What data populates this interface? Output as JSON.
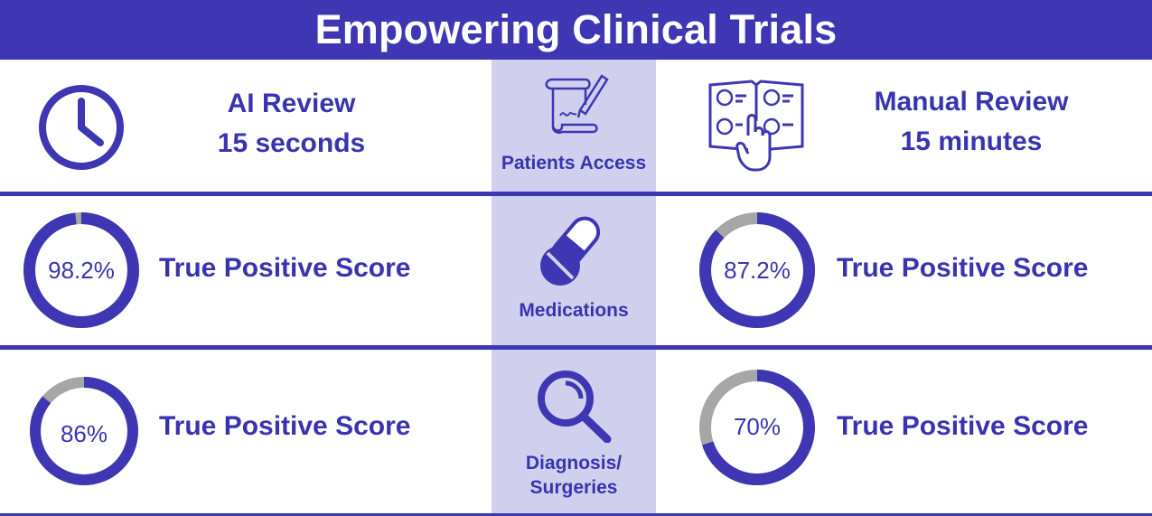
{
  "title": "Empowering Clinical Trials",
  "colors": {
    "primary": "#3e36b3",
    "ring_track": "#a6a6a6",
    "center_band": "#d0d0ee",
    "text": "#3a33b0"
  },
  "ai_review": {
    "label": "AI Review",
    "time": "15 seconds",
    "icon": "clock-icon"
  },
  "manual_review": {
    "label": "Manual Review",
    "time": "15 minutes",
    "icon": "checklist-book-icon"
  },
  "categories": [
    {
      "label": "Patients Access",
      "icon": "scroll-quill-icon"
    },
    {
      "label": "Medications",
      "icon": "pills-icon"
    },
    {
      "label": "Diagnosis/",
      "label2": "Surgeries",
      "icon": "magnifier-icon"
    }
  ],
  "metrics": {
    "ai_medications": {
      "value_text": "98.2%",
      "fraction": 0.982,
      "label": "True Positive Score"
    },
    "manual_medications": {
      "value_text": "87.2%",
      "fraction": 0.872,
      "label": "True Positive Score"
    },
    "ai_diagnosis": {
      "value_text": "86%",
      "fraction": 0.86,
      "label": "True Positive Score"
    },
    "manual_diagnosis": {
      "value_text": "70%",
      "fraction": 0.7,
      "label": "True Positive Score"
    }
  }
}
